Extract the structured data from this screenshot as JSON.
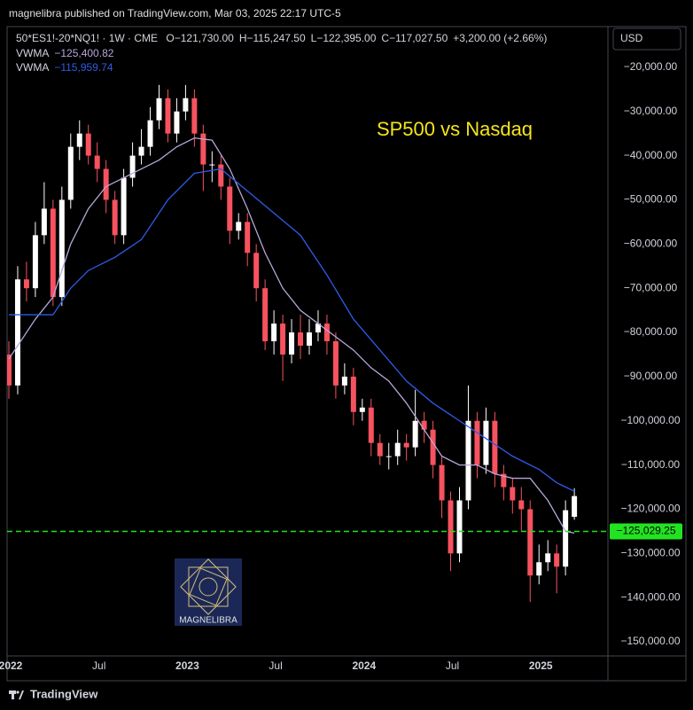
{
  "header": {
    "publisher": "magnelibra published on TradingView.com, Mar 03, 2025 22:17 UTC-5",
    "symbol": "50*ES1!-20*NQ1! · 1W · CME",
    "ohlc": [
      "O−121,730.00",
      "H−115,247.50",
      "L−122,395.00",
      "C−117,027.50",
      "+3,200.00 (+2.66%)"
    ],
    "currency": "USD"
  },
  "logo_text": "MAGNELIBRA",
  "footer": "TradingView",
  "chart_data": {
    "type": "candlestick",
    "title": "SP500 vs Nasdaq",
    "x": [
      2021.99,
      2022.04,
      2022.09,
      2022.14,
      2022.19,
      2022.24,
      2022.29,
      2022.34,
      2022.39,
      2022.44,
      2022.49,
      2022.54,
      2022.59,
      2022.64,
      2022.69,
      2022.74,
      2022.79,
      2022.84,
      2022.89,
      2022.94,
      2022.99,
      2023.04,
      2023.09,
      2023.14,
      2023.19,
      2023.24,
      2023.29,
      2023.34,
      2023.39,
      2023.44,
      2023.49,
      2023.54,
      2023.59,
      2023.64,
      2023.69,
      2023.74,
      2023.79,
      2023.84,
      2023.89,
      2023.94,
      2023.99,
      2024.04,
      2024.09,
      2024.14,
      2024.19,
      2024.24,
      2024.29,
      2024.34,
      2024.39,
      2024.44,
      2024.49,
      2024.54,
      2024.59,
      2024.64,
      2024.69,
      2024.74,
      2024.79,
      2024.84,
      2024.89,
      2024.94,
      2024.99,
      2025.04,
      2025.09,
      2025.14,
      2025.19
    ],
    "open": [
      -85000,
      -92000,
      -68000,
      -70000,
      -58000,
      -52000,
      -72000,
      -50000,
      -38000,
      -35000,
      -40000,
      -43000,
      -50000,
      -58000,
      -45000,
      -40000,
      -38000,
      -32000,
      -27000,
      -35000,
      -30000,
      -27000,
      -35000,
      -42000,
      -42000,
      -47000,
      -57000,
      -55000,
      -62000,
      -70000,
      -82000,
      -78000,
      -85000,
      -80000,
      -83000,
      -80000,
      -78000,
      -82000,
      -92000,
      -90000,
      -98000,
      -97000,
      -105000,
      -108000,
      -108000,
      -105000,
      -106000,
      -100000,
      -102000,
      -110000,
      -118000,
      -130000,
      -118000,
      -100000,
      -110000,
      -100000,
      -112000,
      -115000,
      -118000,
      -120000,
      -135000,
      -132000,
      -130000,
      -133000,
      -121730
    ],
    "high": [
      -82000,
      -65000,
      -64000,
      -55000,
      -46000,
      -50000,
      -47000,
      -35000,
      -32000,
      -33000,
      -37000,
      -41000,
      -48000,
      -43000,
      -37000,
      -34000,
      -29000,
      -24000,
      -25000,
      -27000,
      -24000,
      -25000,
      -33000,
      -39000,
      -40000,
      -45000,
      -53000,
      -53000,
      -60000,
      -68000,
      -75000,
      -76000,
      -77000,
      -76000,
      -77000,
      -75000,
      -76000,
      -80000,
      -87000,
      -88000,
      -95000,
      -95000,
      -103000,
      -105000,
      -102000,
      -103000,
      -93000,
      -98000,
      -100000,
      -108000,
      -116000,
      -115000,
      -92000,
      -98000,
      -97000,
      -98000,
      -110000,
      -113000,
      -115000,
      -118000,
      -128000,
      -127000,
      -128000,
      -118000,
      -115247.5
    ],
    "low": [
      -95000,
      -94000,
      -73000,
      -72000,
      -60000,
      -74000,
      -74000,
      -52000,
      -41000,
      -42000,
      -46000,
      -53000,
      -60000,
      -60000,
      -47000,
      -42000,
      -40000,
      -34000,
      -37000,
      -37000,
      -32000,
      -38000,
      -48000,
      -46000,
      -50000,
      -60000,
      -59000,
      -65000,
      -73000,
      -84000,
      -85000,
      -91000,
      -87000,
      -86000,
      -85000,
      -82000,
      -85000,
      -95000,
      -94000,
      -101000,
      -100000,
      -108000,
      -110000,
      -111000,
      -110000,
      -109000,
      -108000,
      -105000,
      -113000,
      -122000,
      -134000,
      -132000,
      -120000,
      -113000,
      -112000,
      -115000,
      -118000,
      -121000,
      -125000,
      -141000,
      -137000,
      -134000,
      -139000,
      -135000,
      -122395
    ],
    "close": [
      -92000,
      -68000,
      -70000,
      -58000,
      -52000,
      -72000,
      -50000,
      -38000,
      -35000,
      -40000,
      -43000,
      -50000,
      -58000,
      -45000,
      -40000,
      -38000,
      -32000,
      -27000,
      -35000,
      -30000,
      -27000,
      -35000,
      -42000,
      -42000,
      -47000,
      -57000,
      -55000,
      -62000,
      -70000,
      -82000,
      -78000,
      -85000,
      -80000,
      -83000,
      -80000,
      -78000,
      -82000,
      -92000,
      -90000,
      -98000,
      -97000,
      -105000,
      -108000,
      -108000,
      -105000,
      -106000,
      -100000,
      -102000,
      -110000,
      -118000,
      -130000,
      -118000,
      -100000,
      -110000,
      -100000,
      -112000,
      -115000,
      -118000,
      -120000,
      -135000,
      -132000,
      -130000,
      -133000,
      -120227.5,
      -117027.5
    ],
    "up_color": "#ffffff",
    "down_color": "#f7525f",
    "lines": [
      {
        "name": "VWMA",
        "color": "#b7a6d9",
        "legend_value": "−125,400.82",
        "x": [
          2021.99,
          2022.14,
          2022.24,
          2022.34,
          2022.44,
          2022.54,
          2022.64,
          2022.74,
          2022.84,
          2022.94,
          2023.04,
          2023.14,
          2023.24,
          2023.34,
          2023.44,
          2023.54,
          2023.64,
          2023.74,
          2023.84,
          2023.94,
          2024.04,
          2024.14,
          2024.24,
          2024.34,
          2024.44,
          2024.54,
          2024.64,
          2024.74,
          2024.84,
          2024.94,
          2025.04,
          2025.14,
          2025.19
        ],
        "values": [
          -86000,
          -77000,
          -72000,
          -60000,
          -52000,
          -47000,
          -45000,
          -43000,
          -41000,
          -38000,
          -36000,
          -36500,
          -43000,
          -52000,
          -62000,
          -70000,
          -75000,
          -78000,
          -81000,
          -84000,
          -88000,
          -91000,
          -96000,
          -102000,
          -108000,
          -110000,
          -110000,
          -112000,
          -113000,
          -113000,
          -118000,
          -125000,
          -125400.82
        ]
      },
      {
        "name": "VWMA",
        "color": "#2f5be8",
        "legend_value": "−115,959.74",
        "x": [
          2021.99,
          2022.24,
          2022.34,
          2022.44,
          2022.59,
          2022.74,
          2022.89,
          2023.04,
          2023.19,
          2023.34,
          2023.49,
          2023.64,
          2023.79,
          2023.94,
          2024.09,
          2024.24,
          2024.39,
          2024.54,
          2024.69,
          2024.84,
          2024.99,
          2025.09,
          2025.19
        ],
        "values": [
          -76000,
          -76000,
          -70000,
          -66000,
          -63000,
          -59000,
          -50000,
          -44000,
          -43000,
          -48000,
          -53000,
          -58000,
          -67000,
          -77000,
          -84000,
          -91000,
          -96000,
          -100000,
          -104000,
          -108000,
          -111000,
          -114000,
          -115959.74
        ]
      }
    ],
    "price_line": {
      "value": -125029.25,
      "label": "−125,029.25",
      "color": "#22e322"
    },
    "xlim": [
      2021.98,
      2025.38
    ],
    "xticks": [
      2022,
      {
        "value": 2022.5,
        "label": "Jul"
      },
      2023,
      {
        "value": 2023.5,
        "label": "Jul"
      },
      2024,
      {
        "value": 2024.5,
        "label": "Jul"
      },
      2025
    ],
    "ylim": [
      -153200,
      -10800
    ],
    "yticks": [
      {
        "value": -20000,
        "label": "−20,000.00"
      },
      {
        "value": -30000,
        "label": "−30,000.00"
      },
      {
        "value": -40000,
        "label": "−40,000.00"
      },
      {
        "value": -50000,
        "label": "−50,000.00"
      },
      {
        "value": -60000,
        "label": "−60,000.00"
      },
      {
        "value": -70000,
        "label": "−70,000.00"
      },
      {
        "value": -80000,
        "label": "−80,000.00"
      },
      {
        "value": -90000,
        "label": "−90,000.00"
      },
      {
        "value": -100000,
        "label": "−100,000.00"
      },
      {
        "value": -110000,
        "label": "−110,000.00"
      },
      {
        "value": -120000,
        "label": "−120,000.00"
      },
      {
        "value": -130000,
        "label": "−130,000.00"
      },
      {
        "value": -140000,
        "label": "−140,000.00"
      },
      {
        "value": -150000,
        "label": "−150,000.00"
      }
    ],
    "grid": false
  }
}
